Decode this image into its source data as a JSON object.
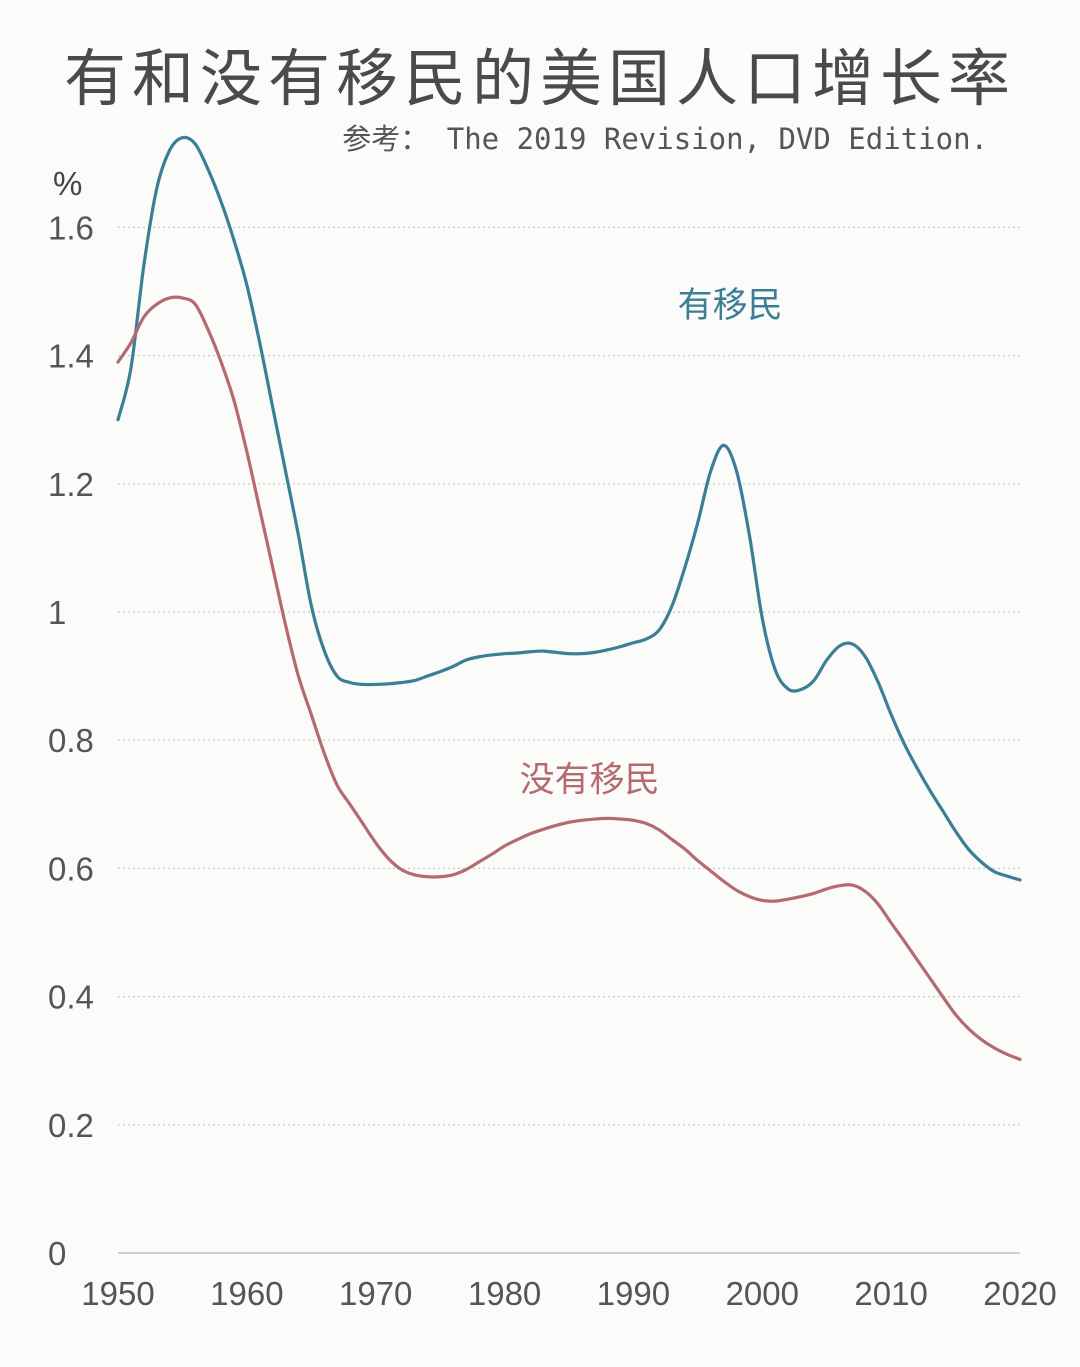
{
  "title": "有和没有移民的美国人口增长率",
  "subtitle": "参考： The 2019 Revision, DVD Edition.",
  "chart_data": {
    "type": "line",
    "title": "有和没有移民的美国人口增长率",
    "subtitle": "参考： The 2019 Revision, DVD Edition.",
    "ylabel": "%",
    "xlabel": "",
    "xlim": [
      1950,
      2020
    ],
    "ylim": [
      0,
      1.75
    ],
    "xticks": [
      1950,
      1960,
      1970,
      1980,
      1990,
      2000,
      2010,
      2020
    ],
    "yticks": [
      0,
      0.2,
      0.4,
      0.6,
      0.8,
      1,
      1.2,
      1.4,
      1.6
    ],
    "ytick_labels": [
      "0",
      "0.2",
      "0.4",
      "0.6",
      "0.8",
      "1",
      "1.2",
      "1.4",
      "1.6"
    ],
    "grid": true,
    "series": [
      {
        "name": "有移民",
        "color": "#3a7f95",
        "x": [
          1950,
          1951,
          1952,
          1953,
          1954,
          1955,
          1956,
          1957,
          1958,
          1959,
          1960,
          1961,
          1962,
          1963,
          1964,
          1965,
          1966,
          1967,
          1968,
          1969,
          1970,
          1971,
          1972,
          1973,
          1974,
          1975,
          1976,
          1977,
          1978,
          1979,
          1980,
          1981,
          1982,
          1983,
          1984,
          1985,
          1986,
          1987,
          1988,
          1989,
          1990,
          1991,
          1992,
          1993,
          1994,
          1995,
          1996,
          1997,
          1998,
          1999,
          2000,
          2001,
          2002,
          2003,
          2004,
          2005,
          2006,
          2007,
          2008,
          2009,
          2010,
          2011,
          2012,
          2013,
          2014,
          2015,
          2016,
          2017,
          2018,
          2019,
          2020
        ],
        "values": [
          1.3,
          1.38,
          1.54,
          1.66,
          1.72,
          1.74,
          1.73,
          1.69,
          1.64,
          1.58,
          1.51,
          1.42,
          1.32,
          1.22,
          1.12,
          1.01,
          0.94,
          0.9,
          0.89,
          0.887,
          0.887,
          0.888,
          0.89,
          0.893,
          0.9,
          0.907,
          0.915,
          0.925,
          0.93,
          0.933,
          0.935,
          0.936,
          0.938,
          0.939,
          0.937,
          0.935,
          0.935,
          0.937,
          0.941,
          0.946,
          0.952,
          0.958,
          0.972,
          1.01,
          1.07,
          1.14,
          1.22,
          1.26,
          1.22,
          1.12,
          0.99,
          0.91,
          0.88,
          0.879,
          0.893,
          0.925,
          0.947,
          0.95,
          0.93,
          0.89,
          0.84,
          0.795,
          0.757,
          0.722,
          0.69,
          0.658,
          0.63,
          0.61,
          0.595,
          0.588,
          0.582
        ]
      },
      {
        "name": "没有移民",
        "color": "#b46a6e",
        "x": [
          1950,
          1951,
          1952,
          1953,
          1954,
          1955,
          1956,
          1957,
          1958,
          1959,
          1960,
          1961,
          1962,
          1963,
          1964,
          1965,
          1966,
          1967,
          1968,
          1969,
          1970,
          1971,
          1972,
          1973,
          1974,
          1975,
          1976,
          1977,
          1978,
          1979,
          1980,
          1981,
          1982,
          1983,
          1984,
          1985,
          1986,
          1987,
          1988,
          1989,
          1990,
          1991,
          1992,
          1993,
          1994,
          1995,
          1996,
          1997,
          1998,
          1999,
          2000,
          2001,
          2002,
          2003,
          2004,
          2005,
          2006,
          2007,
          2008,
          2009,
          2010,
          2011,
          2012,
          2013,
          2014,
          2015,
          2016,
          2017,
          2018,
          2019,
          2020
        ],
        "values": [
          1.39,
          1.42,
          1.46,
          1.48,
          1.49,
          1.49,
          1.48,
          1.44,
          1.39,
          1.33,
          1.25,
          1.16,
          1.07,
          0.98,
          0.9,
          0.84,
          0.78,
          0.73,
          0.7,
          0.67,
          0.64,
          0.615,
          0.598,
          0.59,
          0.587,
          0.587,
          0.59,
          0.598,
          0.61,
          0.622,
          0.635,
          0.645,
          0.654,
          0.661,
          0.667,
          0.672,
          0.675,
          0.677,
          0.678,
          0.677,
          0.675,
          0.67,
          0.66,
          0.645,
          0.63,
          0.612,
          0.596,
          0.58,
          0.566,
          0.556,
          0.55,
          0.549,
          0.552,
          0.556,
          0.561,
          0.568,
          0.573,
          0.574,
          0.564,
          0.544,
          0.515,
          0.487,
          0.458,
          0.429,
          0.4,
          0.372,
          0.35,
          0.333,
          0.32,
          0.31,
          0.302
        ]
      }
    ],
    "annotations": [
      {
        "text": "有移民",
        "series": 0,
        "x": 1997.5,
        "y": 1.46
      },
      {
        "text": "没有移民",
        "series": 1,
        "x": 1986.6,
        "y": 0.72
      }
    ]
  }
}
